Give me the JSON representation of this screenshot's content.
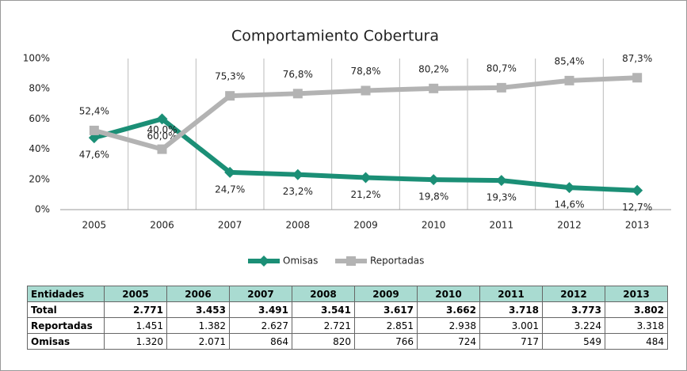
{
  "chart_data": {
    "type": "line",
    "title": "Comportamiento Cobertura",
    "categories": [
      "2005",
      "2006",
      "2007",
      "2008",
      "2009",
      "2010",
      "2011",
      "2012",
      "2013"
    ],
    "series": [
      {
        "name": "Omisas",
        "color": "#1b8f76",
        "marker": "diamond",
        "values": [
          47.6,
          60.0,
          24.7,
          23.2,
          21.2,
          19.8,
          19.3,
          14.6,
          12.7
        ],
        "value_labels": [
          "47,6%",
          "60,0%",
          "24,7%",
          "23,2%",
          "21,2%",
          "19,8%",
          "19,3%",
          "14,6%",
          "12,7%"
        ]
      },
      {
        "name": "Reportadas",
        "color": "#b3b3b3",
        "marker": "square",
        "values": [
          52.4,
          40.0,
          75.3,
          76.8,
          78.8,
          80.2,
          80.7,
          85.4,
          87.3
        ],
        "value_labels": [
          "52,4%",
          "40,0%",
          "75,3%",
          "76,8%",
          "78,8%",
          "80,2%",
          "80,7%",
          "85,4%",
          "87,3%"
        ]
      }
    ],
    "ylim": [
      0,
      100
    ],
    "yticks": [
      {
        "value": 0,
        "label": "0%"
      },
      {
        "value": 20,
        "label": "20%"
      },
      {
        "value": 40,
        "label": "40%"
      },
      {
        "value": 60,
        "label": "60%"
      },
      {
        "value": 80,
        "label": "80%"
      },
      {
        "value": 100,
        "label": "100%"
      }
    ],
    "legend": "bottom"
  },
  "table": {
    "header": [
      "Entidades",
      "2005",
      "2006",
      "2007",
      "2008",
      "2009",
      "2010",
      "2011",
      "2012",
      "2013"
    ],
    "rows": [
      [
        "Total",
        "2.771",
        "3.453",
        "3.491",
        "3.541",
        "3.617",
        "3.662",
        "3.718",
        "3.773",
        "3.802"
      ],
      [
        "Reportadas",
        "1.451",
        "1.382",
        "2.627",
        "2.721",
        "2.851",
        "2.938",
        "3.001",
        "3.224",
        "3.318"
      ],
      [
        "Omisas",
        "1.320",
        "2.071",
        "864",
        "820",
        "766",
        "724",
        "717",
        "549",
        "484"
      ]
    ]
  }
}
